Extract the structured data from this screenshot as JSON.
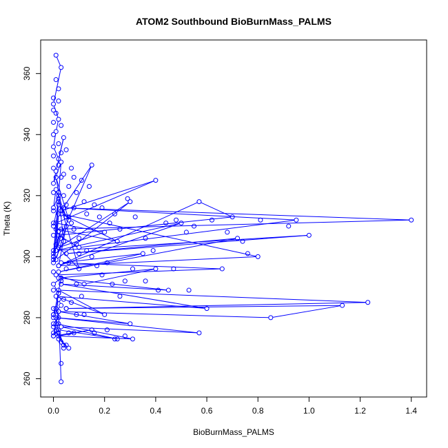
{
  "chart_data": {
    "type": "line",
    "title": "ATOM2 Southbound BioBurnMass_PALMS",
    "xlabel": "BioBurnMass_PALMS",
    "ylabel": "Theta (K)",
    "xlim": [
      -0.05,
      1.46
    ],
    "ylim": [
      254,
      371
    ],
    "xticks": [
      0.0,
      0.2,
      0.4,
      0.6,
      0.8,
      1.0,
      1.2,
      1.4
    ],
    "xtick_labels": [
      "0.0",
      "0.2",
      "0.4",
      "0.6",
      "0.8",
      "1.0",
      "1.2",
      "1.4"
    ],
    "yticks": [
      260,
      280,
      300,
      320,
      340,
      360
    ],
    "ytick_labels": [
      "260",
      "280",
      "300",
      "320",
      "340",
      "360"
    ],
    "grid": false,
    "legend": "none",
    "marker": "open-circle",
    "series_color": "#0000ff",
    "series": [
      {
        "x": [
          0.01,
          0.03,
          0.0,
          0.02,
          0.01,
          0.0,
          0.02,
          0.04,
          0.01,
          0.0,
          0.03,
          0.02,
          0.0,
          0.01,
          0.05,
          0.02,
          0.0,
          0.03,
          0.01,
          0.02,
          0.0,
          0.04,
          0.02,
          0.01,
          0.06,
          0.02,
          0.0,
          0.03,
          0.01,
          0.1,
          0.02,
          0.0,
          0.15,
          0.03,
          0.4,
          0.01,
          0.2,
          0.02,
          0.3,
          0.01,
          0.05,
          0.02,
          0.57,
          0.7,
          0.02,
          0.1,
          0.95,
          0.04,
          1.4,
          0.01,
          0.25,
          0.03,
          0.8,
          0.02,
          0.5,
          0.01,
          1.0,
          0.05,
          0.72,
          0.02,
          0.35,
          0.03,
          0.66,
          0.01,
          0.12,
          0.4,
          0.02,
          0.45,
          0.03,
          0.6,
          0.01,
          0.2,
          0.02,
          1.23,
          0.05,
          1.13,
          0.85,
          0.02,
          0.3,
          0.01,
          0.57,
          0.03,
          0.25,
          0.02,
          0.0,
          0.15,
          0.02,
          0.31,
          0.01,
          0.04,
          0.02,
          0.02,
          0.06,
          0.03,
          0.0,
          0.02,
          0.01,
          0.0,
          0.03,
          0.02,
          0.01,
          0.02,
          0.0,
          0.03,
          0.0,
          0.02,
          0.01,
          0.0,
          0.02,
          0.03
        ],
        "y": [
          366,
          362,
          350,
          345,
          341,
          336,
          332,
          339,
          328,
          324,
          331,
          320,
          316,
          322,
          313,
          318,
          310,
          306,
          302,
          314,
          298,
          305,
          321,
          326,
          312,
          317,
          300,
          309,
          304,
          296,
          319,
          301,
          330,
          315,
          325,
          311,
          308,
          303,
          318,
          299,
          310,
          297,
          318,
          313,
          307,
          303,
          312,
          316,
          312,
          309,
          305,
          314,
          300,
          297,
          311,
          302,
          307,
          301,
          306,
          295,
          301,
          298,
          296,
          294,
          291,
          296,
          293,
          289,
          291,
          283,
          287,
          281,
          289,
          285,
          283,
          284,
          280,
          282,
          278,
          280,
          275,
          277,
          273,
          276,
          274,
          276,
          274,
          273,
          278,
          271,
          275,
          273,
          270,
          272,
          278,
          280,
          283,
          281,
          284,
          286,
          282,
          288,
          291,
          293,
          280,
          278,
          276,
          274,
          282,
          259
        ]
      }
    ],
    "stars": [
      {
        "x": 0.0,
        "y": 302
      },
      {
        "x": 0.0,
        "y": 300
      },
      {
        "x": 0.0,
        "y": 299
      },
      {
        "x": 0.0,
        "y": 352
      },
      {
        "x": 0.0,
        "y": 348
      },
      {
        "x": 0.0,
        "y": 344
      },
      {
        "x": 0.0,
        "y": 340
      },
      {
        "x": 0.0,
        "y": 333
      },
      {
        "x": 0.0,
        "y": 329
      },
      {
        "x": 0.0,
        "y": 321
      },
      {
        "x": 0.0,
        "y": 315
      },
      {
        "x": 0.0,
        "y": 311
      },
      {
        "x": 0.0,
        "y": 307
      },
      {
        "x": 0.0,
        "y": 295
      },
      {
        "x": 0.0,
        "y": 289
      },
      {
        "x": 0.0,
        "y": 283
      },
      {
        "x": 0.0,
        "y": 281
      },
      {
        "x": 0.0,
        "y": 277
      },
      {
        "x": 0.0,
        "y": 275
      },
      {
        "x": 0.02,
        "y": 355
      },
      {
        "x": 0.01,
        "y": 358
      },
      {
        "x": 0.02,
        "y": 351
      },
      {
        "x": 0.01,
        "y": 347
      },
      {
        "x": 0.03,
        "y": 343
      },
      {
        "x": 0.02,
        "y": 337
      },
      {
        "x": 0.03,
        "y": 334
      },
      {
        "x": 0.05,
        "y": 335
      },
      {
        "x": 0.04,
        "y": 327
      },
      {
        "x": 0.07,
        "y": 329
      },
      {
        "x": 0.06,
        "y": 323
      },
      {
        "x": 0.08,
        "y": 326
      },
      {
        "x": 0.09,
        "y": 321
      },
      {
        "x": 0.11,
        "y": 325
      },
      {
        "x": 0.12,
        "y": 318
      },
      {
        "x": 0.14,
        "y": 323
      },
      {
        "x": 0.13,
        "y": 314
      },
      {
        "x": 0.16,
        "y": 317
      },
      {
        "x": 0.18,
        "y": 313
      },
      {
        "x": 0.19,
        "y": 316
      },
      {
        "x": 0.22,
        "y": 311
      },
      {
        "x": 0.24,
        "y": 314
      },
      {
        "x": 0.26,
        "y": 309
      },
      {
        "x": 0.29,
        "y": 319
      },
      {
        "x": 0.32,
        "y": 313
      },
      {
        "x": 0.36,
        "y": 306
      },
      {
        "x": 0.39,
        "y": 302
      },
      {
        "x": 0.44,
        "y": 311
      },
      {
        "x": 0.48,
        "y": 312
      },
      {
        "x": 0.52,
        "y": 308
      },
      {
        "x": 0.55,
        "y": 310
      },
      {
        "x": 0.62,
        "y": 312
      },
      {
        "x": 0.68,
        "y": 308
      },
      {
        "x": 0.74,
        "y": 305
      },
      {
        "x": 0.76,
        "y": 301
      },
      {
        "x": 0.81,
        "y": 312
      },
      {
        "x": 0.92,
        "y": 310
      },
      {
        "x": 0.1,
        "y": 306
      },
      {
        "x": 0.13,
        "y": 302
      },
      {
        "x": 0.15,
        "y": 300
      },
      {
        "x": 0.17,
        "y": 297
      },
      {
        "x": 0.19,
        "y": 294
      },
      {
        "x": 0.21,
        "y": 298
      },
      {
        "x": 0.23,
        "y": 291
      },
      {
        "x": 0.26,
        "y": 287
      },
      {
        "x": 0.28,
        "y": 292
      },
      {
        "x": 0.31,
        "y": 296
      },
      {
        "x": 0.36,
        "y": 292
      },
      {
        "x": 0.41,
        "y": 289
      },
      {
        "x": 0.47,
        "y": 296
      },
      {
        "x": 0.53,
        "y": 289
      },
      {
        "x": 0.09,
        "y": 291
      },
      {
        "x": 0.11,
        "y": 287
      },
      {
        "x": 0.07,
        "y": 285
      },
      {
        "x": 0.09,
        "y": 281
      },
      {
        "x": 0.12,
        "y": 281
      },
      {
        "x": 0.16,
        "y": 275
      },
      {
        "x": 0.21,
        "y": 276
      },
      {
        "x": 0.24,
        "y": 273
      },
      {
        "x": 0.28,
        "y": 274
      },
      {
        "x": 0.04,
        "y": 270
      },
      {
        "x": 0.05,
        "y": 271
      },
      {
        "x": 0.06,
        "y": 275
      },
      {
        "x": 0.08,
        "y": 275
      },
      {
        "x": 0.03,
        "y": 265
      },
      {
        "x": 0.05,
        "y": 283
      },
      {
        "x": 0.02,
        "y": 330
      },
      {
        "x": 0.03,
        "y": 326
      },
      {
        "x": 0.04,
        "y": 320
      },
      {
        "x": 0.05,
        "y": 317
      },
      {
        "x": 0.06,
        "y": 313
      },
      {
        "x": 0.07,
        "y": 311
      },
      {
        "x": 0.08,
        "y": 309
      },
      {
        "x": 0.09,
        "y": 304
      },
      {
        "x": 0.1,
        "y": 301
      },
      {
        "x": 0.05,
        "y": 296
      },
      {
        "x": 0.03,
        "y": 292
      },
      {
        "x": 0.02,
        "y": 288
      },
      {
        "x": 0.04,
        "y": 286
      },
      {
        "x": 0.06,
        "y": 298
      },
      {
        "x": 0.08,
        "y": 316
      }
    ]
  }
}
